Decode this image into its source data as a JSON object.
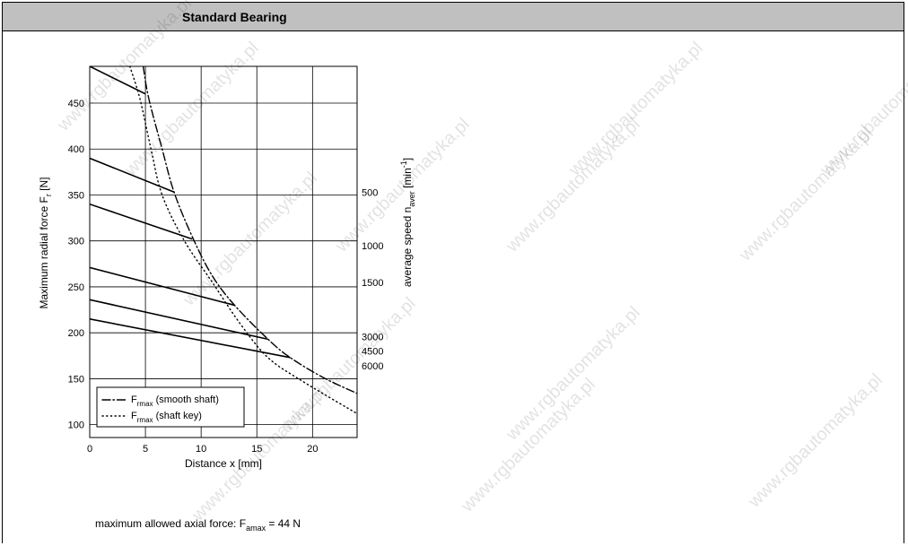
{
  "header": {
    "title": "Standard Bearing"
  },
  "footer": {
    "axial_text": "maximum allowed axial force: F",
    "axial_sub": "amax",
    "axial_value": " =  44 N"
  },
  "watermark": {
    "text": "www.rgbautomatyka.pl"
  },
  "chart_data": {
    "type": "line",
    "xlabel": "Distance x [mm]",
    "ylabel": {
      "main": "Maximum radial force F",
      "sub": "r",
      "unit": " [N]"
    },
    "y2label": {
      "main": "average speed n",
      "sub": "aver",
      "unit": " [min",
      "sup": "-1",
      "close": "]"
    },
    "xlim": [
      0,
      24
    ],
    "ylim": [
      86,
      490
    ],
    "xticks": [
      0,
      5,
      10,
      15,
      20
    ],
    "yticks": [
      100,
      150,
      200,
      250,
      300,
      350,
      400,
      450
    ],
    "grid": true,
    "series": [
      {
        "name": "500",
        "points": [
          [
            0,
            390
          ],
          [
            7.6,
            353
          ]
        ]
      },
      {
        "name": "1000",
        "points": [
          [
            0,
            340
          ],
          [
            9.2,
            302
          ]
        ]
      },
      {
        "name": "1500",
        "points": [
          [
            0,
            271
          ],
          [
            13,
            230
          ]
        ]
      },
      {
        "name": "3000",
        "points": [
          [
            0,
            236
          ],
          [
            16,
            193
          ]
        ]
      },
      {
        "name": "4500",
        "points": [
          [
            0,
            215
          ],
          [
            18,
            173
          ]
        ]
      },
      {
        "name": "6000",
        "points": [
          [
            0,
            490
          ],
          [
            5,
            460
          ]
        ]
      }
    ],
    "limit_curves": [
      {
        "id": "smooth",
        "style": "dash-dot",
        "legend_main": "F",
        "legend_sub": "rmax",
        "legend_text": "(smooth shaft)",
        "points": [
          [
            4.8,
            490
          ],
          [
            5.3,
            455
          ],
          [
            6.5,
            400
          ],
          [
            7.6,
            352
          ],
          [
            9.3,
            302
          ],
          [
            11,
            262
          ],
          [
            13,
            230
          ],
          [
            16,
            193
          ],
          [
            18,
            173
          ],
          [
            21,
            151
          ],
          [
            24,
            134
          ]
        ]
      },
      {
        "id": "key",
        "style": "dotted",
        "legend_main": "F",
        "legend_sub": "rmax",
        "legend_text": "(shaft key)",
        "points": [
          [
            3.6,
            490
          ],
          [
            4.5,
            455
          ],
          [
            5.5,
            400
          ],
          [
            6.5,
            350
          ],
          [
            8.5,
            300
          ],
          [
            11,
            255
          ],
          [
            13.5,
            210
          ],
          [
            16,
            173
          ],
          [
            19,
            148
          ],
          [
            24,
            112
          ]
        ]
      }
    ],
    "speed_labels": [
      {
        "text": "500",
        "y": 353
      },
      {
        "text": "1000",
        "y": 295
      },
      {
        "text": "1500",
        "y": 255
      },
      {
        "text": "3000",
        "y": 196
      },
      {
        "text": "4500",
        "y": 180
      },
      {
        "text": "6000",
        "y": 164
      }
    ]
  }
}
